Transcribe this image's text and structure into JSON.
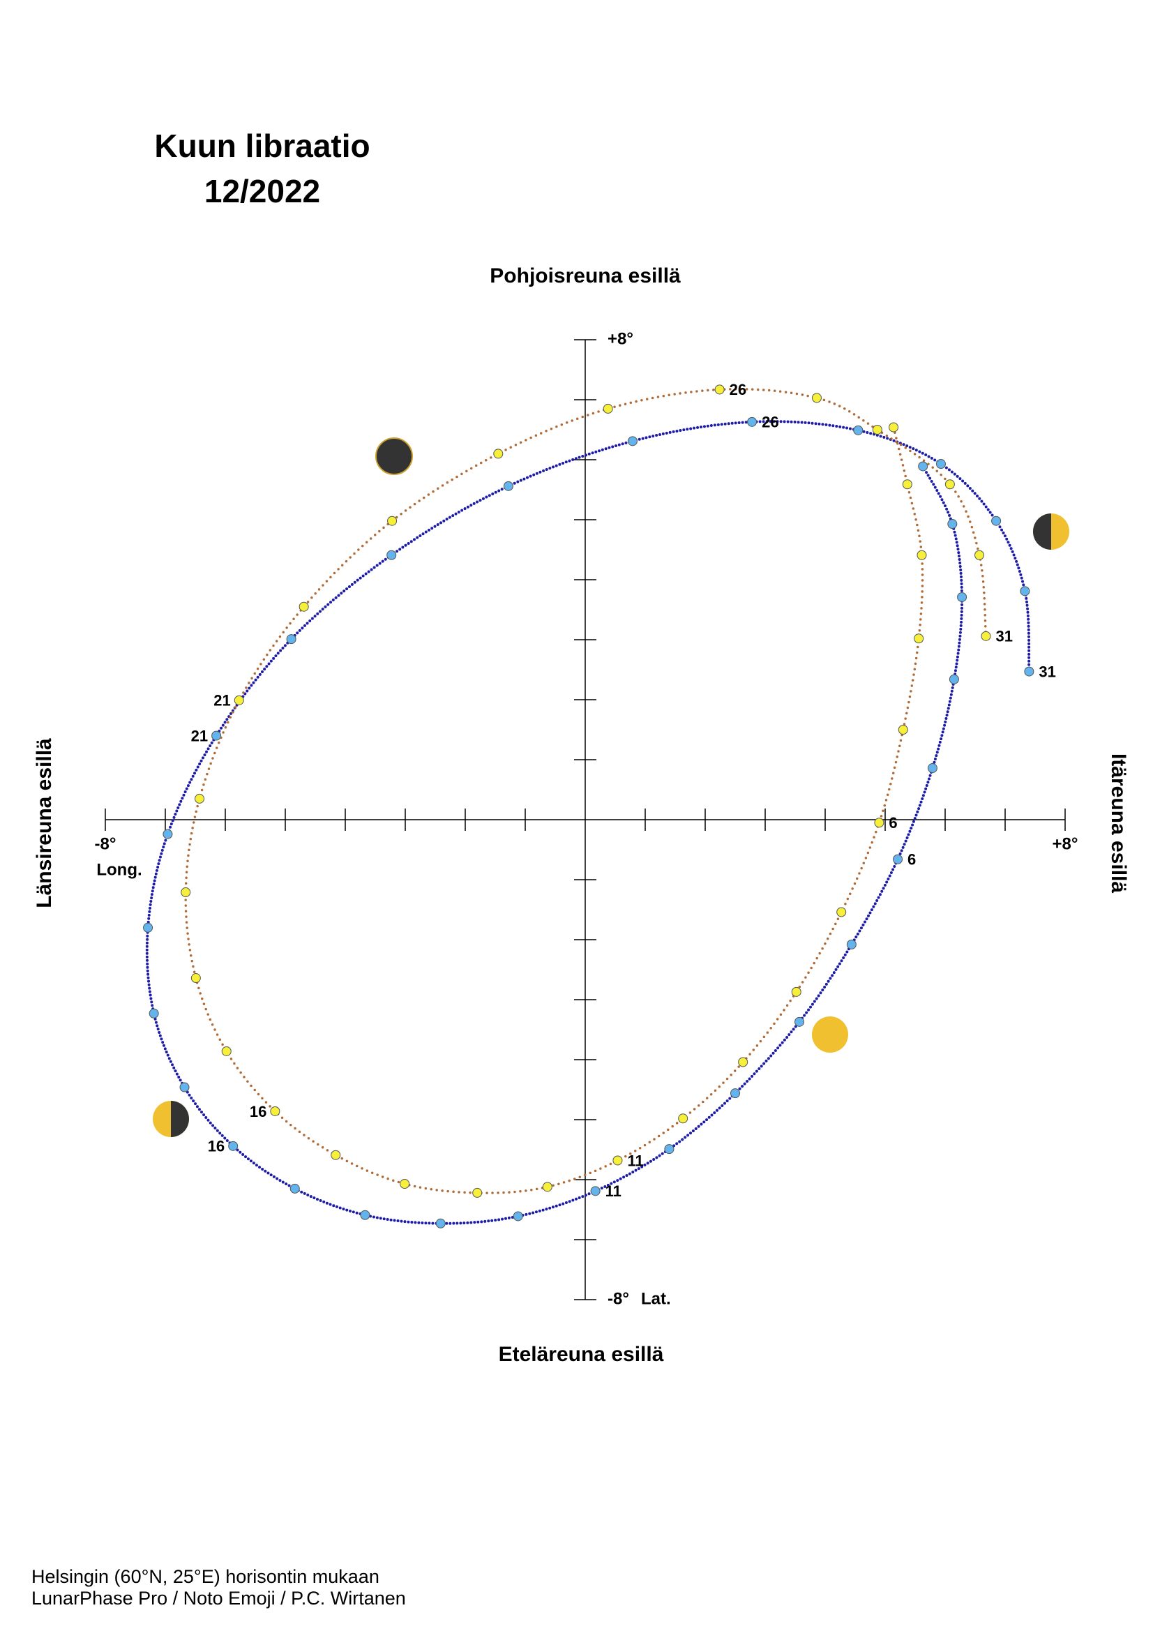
{
  "chart_data": {
    "type": "line",
    "title": "Kuun libraatio",
    "subtitle": "12/2022",
    "top_label": "Pohjoisreuna esillä",
    "bottom_label": "Eteläreuna esillä",
    "left_label": "Länsireuna esillä",
    "right_label": "Itäreuna esillä",
    "xlabel": "Long.",
    "ylabel": "Lat.",
    "xlim": [
      -8,
      8
    ],
    "ylim": [
      -8,
      8
    ],
    "xticks": [
      {
        "value": -8,
        "label": "-8°"
      },
      {
        "value": 8,
        "label": "+8°"
      }
    ],
    "yticks": [
      {
        "value": -8,
        "label": "-8°"
      },
      {
        "value": 8,
        "label": "+8°"
      }
    ],
    "x_minor_ticks": [
      -7,
      -6,
      -5,
      -4,
      -3,
      -2,
      -1,
      1,
      2,
      3,
      4,
      5,
      6,
      7
    ],
    "y_minor_ticks": [
      -7,
      -6,
      -5,
      -4,
      -3,
      -2,
      -1,
      1,
      2,
      3,
      4,
      5,
      6,
      7
    ],
    "labeled_days": [
      6,
      11,
      16,
      21,
      26,
      31
    ],
    "series": [
      {
        "color": "#1c1ca8",
        "marker_color": "#63b4ec",
        "x": [
          5.63,
          6.12,
          6.28,
          6.15,
          5.79,
          5.21,
          4.44,
          3.57,
          2.5,
          1.4,
          0.17,
          -1.12,
          -2.41,
          -3.67,
          -4.84,
          -5.87,
          -6.68,
          -7.19,
          -7.29,
          -6.96,
          -6.15,
          -4.9,
          -3.23,
          -1.28,
          0.79,
          2.78,
          4.55,
          5.93,
          6.85,
          7.33,
          7.4
        ],
        "values": [
          5.89,
          4.93,
          3.71,
          2.34,
          0.86,
          -0.66,
          -2.08,
          -3.37,
          -4.56,
          -5.49,
          -6.19,
          -6.61,
          -6.73,
          -6.59,
          -6.15,
          -5.44,
          -4.46,
          -3.23,
          -1.8,
          -0.24,
          1.4,
          3.01,
          4.41,
          5.56,
          6.31,
          6.63,
          6.49,
          5.93,
          4.98,
          3.81,
          2.47
        ]
      },
      {
        "color": "#b06a35",
        "marker_color": "#f7f03a",
        "x": [
          5.14,
          5.37,
          5.61,
          5.56,
          5.3,
          4.9,
          4.27,
          3.52,
          2.63,
          1.63,
          0.54,
          -0.63,
          -1.8,
          -3.01,
          -4.16,
          -5.17,
          -5.98,
          -6.49,
          -6.66,
          -6.43,
          -5.77,
          -4.69,
          -3.22,
          -1.45,
          0.38,
          2.24,
          3.86,
          4.87,
          6.08,
          6.57,
          6.68
        ],
        "values": [
          6.54,
          5.59,
          4.41,
          3.02,
          1.5,
          -0.05,
          -1.54,
          -2.87,
          -4.04,
          -4.98,
          -5.68,
          -6.12,
          -6.22,
          -6.07,
          -5.59,
          -4.86,
          -3.86,
          -2.64,
          -1.21,
          0.35,
          1.99,
          3.55,
          4.98,
          6.1,
          6.85,
          7.17,
          7.03,
          6.5,
          5.59,
          4.41,
          3.06
        ]
      }
    ]
  },
  "footer": [
    "Helsingin (60°N, 25°E) horisontin mukaan",
    "LunarPhase Pro / Noto Emoji / P.C. Wirtanen"
  ]
}
